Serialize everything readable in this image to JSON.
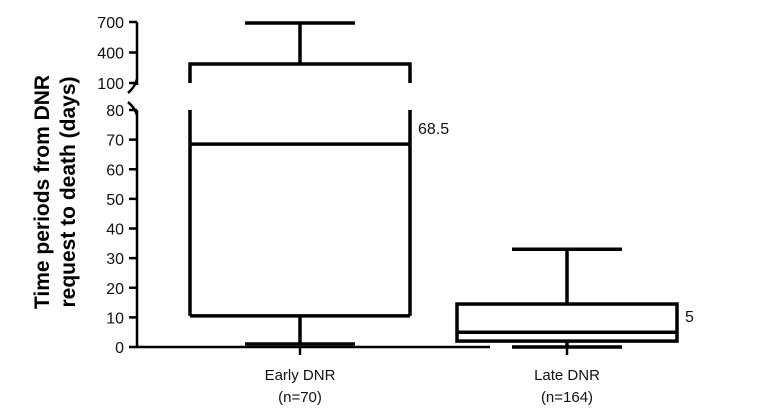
{
  "chart_data": {
    "type": "box",
    "ylabel_lines": [
      "Time periods from DNR",
      "request to death (days)"
    ],
    "y_axis": {
      "lower_segment": {
        "range": [
          0,
          80
        ],
        "ticks": [
          "0",
          "10",
          "20",
          "30",
          "40",
          "50",
          "60",
          "70",
          "80"
        ]
      },
      "upper_segment": {
        "range": [
          100,
          700
        ],
        "ticks": [
          "100",
          "400",
          "700"
        ]
      },
      "broken": true
    },
    "categories": [
      {
        "label": "Early DNR",
        "n_label": "(n=70)",
        "whisker_low": 1,
        "q1": 10.5,
        "median": 68.5,
        "q3": 220,
        "whisker_high": 690,
        "median_label": "68.5"
      },
      {
        "label": "Late DNR",
        "n_label": "(n=164)",
        "whisker_low": 0,
        "q1": 2,
        "median": 5,
        "q3": 14.5,
        "whisker_high": 33,
        "median_label": "5"
      }
    ]
  }
}
